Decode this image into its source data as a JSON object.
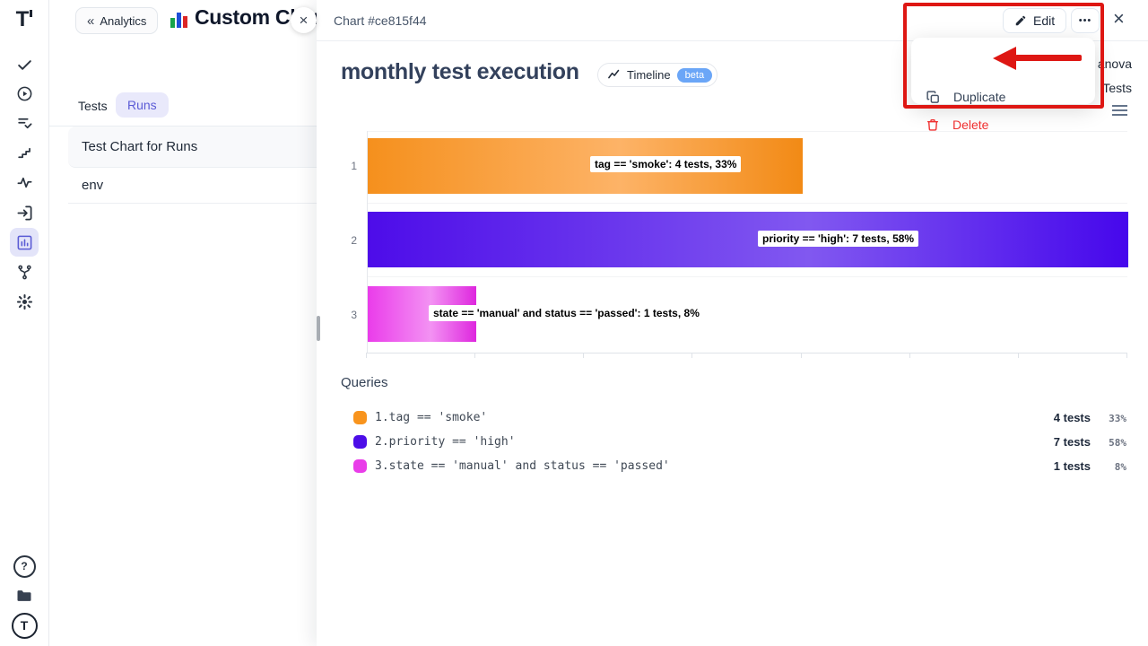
{
  "sidebar": {
    "logo_text": "T",
    "help_text": "?",
    "logo_circle_text": "T",
    "icons": [
      "logo",
      "tasks-check",
      "play-circle",
      "list-check",
      "steps",
      "pulse",
      "sign-in",
      "bar-chart",
      "branch",
      "gear",
      "help",
      "folder",
      "logo-circle"
    ]
  },
  "panel": {
    "back_button": "Analytics",
    "back_icon": "«",
    "title": "Custom Charts",
    "tabs": [
      {
        "label": "Tests"
      },
      {
        "label": "Runs"
      }
    ],
    "items": [
      {
        "label": "Test Chart for Runs"
      },
      {
        "label": "env"
      }
    ],
    "close_button": "×"
  },
  "drawer": {
    "header_title": "Chart #ce815f44",
    "edit_button": "Edit",
    "more_button": "•••",
    "close_button": "×"
  },
  "chart": {
    "title": "monthly test execution",
    "timeline_button": "Timeline",
    "beta_badge": "beta"
  },
  "chart_data": {
    "type": "bar",
    "orientation": "horizontal",
    "categories": [
      "1",
      "2",
      "3"
    ],
    "series": [
      {
        "name": "tests",
        "values": [
          4,
          7,
          1
        ]
      }
    ],
    "percentages": [
      33,
      58,
      8
    ],
    "bar_labels": [
      "tag == 'smoke': 4 tests, 33%",
      "priority == 'high': 7 tests, 58%",
      "state == 'manual' and status == 'passed': 1 tests, 8%"
    ],
    "bar_gradients": [
      [
        "#f5901d",
        "#fdb367",
        "#f28a15"
      ],
      [
        "#4d0ce9",
        "#8158f0",
        "#4607ec"
      ],
      [
        "#ea3cea",
        "#f392f3",
        "#de27de"
      ]
    ],
    "xlim": [
      0,
      7
    ],
    "grid": true,
    "legend_position": "bottom"
  },
  "queries": {
    "heading": "Queries",
    "rows": [
      {
        "index": "1.",
        "query": "tag == 'smoke'",
        "tests": "4 tests",
        "percent": "33%",
        "color": "#f8941d"
      },
      {
        "index": "2.",
        "query": "priority == 'high'",
        "tests": "7 tests",
        "percent": "58%",
        "color": "#4c0de8"
      },
      {
        "index": "3.",
        "query": "state == 'manual' and status == 'passed'",
        "tests": "1 tests",
        "percent": "8%",
        "color": "#e93de9"
      }
    ]
  },
  "context_menu": {
    "duplicate": "Duplicate",
    "delete": "Delete"
  },
  "background": {
    "partial_text_1": "anova",
    "partial_text_2": "Tests"
  },
  "annotation": {
    "color": "#de1713"
  }
}
